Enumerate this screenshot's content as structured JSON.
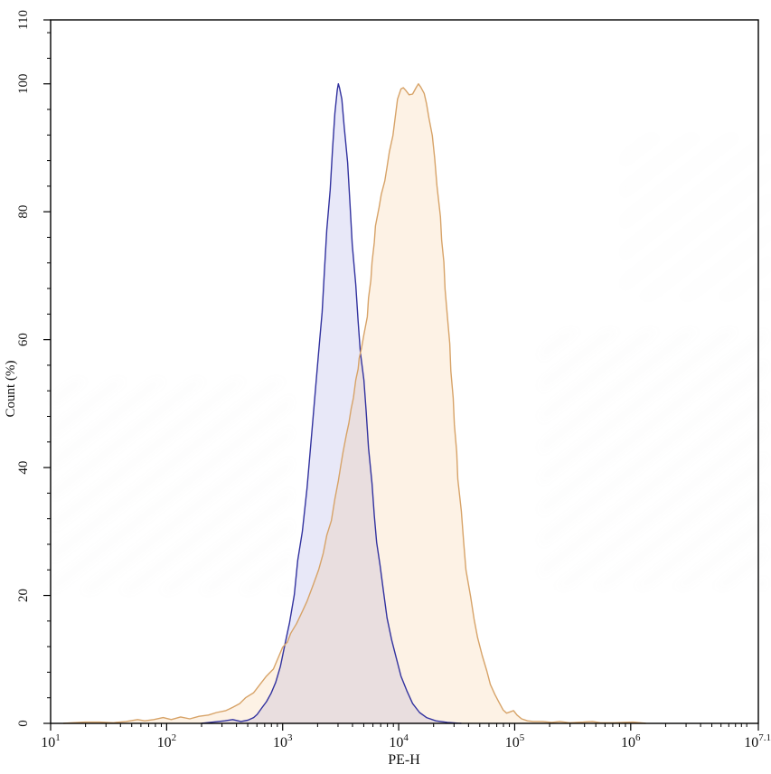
{
  "chart_data": {
    "type": "area",
    "title": "",
    "xlabel": "PE-H",
    "ylabel": "Count (%)",
    "x_scale": "log10",
    "x_log_range": [
      1,
      7.1
    ],
    "ylim": [
      0,
      110
    ],
    "grid": false,
    "legend": "none",
    "x_major_ticks": [
      {
        "log": 1,
        "base": "10",
        "exp": "1"
      },
      {
        "log": 2,
        "base": "10",
        "exp": "2"
      },
      {
        "log": 3,
        "base": "10",
        "exp": "3"
      },
      {
        "log": 4,
        "base": "10",
        "exp": "4"
      },
      {
        "log": 5,
        "base": "10",
        "exp": "5"
      },
      {
        "log": 6,
        "base": "10",
        "exp": "6"
      },
      {
        "log": 7.1,
        "base": "10",
        "exp": "7.1"
      }
    ],
    "y_major_ticks": [
      0,
      20,
      40,
      60,
      80,
      100,
      110
    ],
    "y_minor_interval": 4,
    "series": [
      {
        "name": "blue_histogram",
        "peak_log10_x": 3.48,
        "peak_pct": 100,
        "stroke": "#32329f",
        "fill": "rgba(95,95,205,0.14)",
        "points": [
          [
            2.3,
            0
          ],
          [
            2.4,
            0.2
          ],
          [
            2.5,
            0.4
          ],
          [
            2.57,
            0.6
          ],
          [
            2.64,
            0.3
          ],
          [
            2.7,
            0.5
          ],
          [
            2.75,
            0.9
          ],
          [
            2.78,
            1.4
          ],
          [
            2.82,
            2.4
          ],
          [
            2.86,
            3.4
          ],
          [
            2.9,
            4.7
          ],
          [
            2.94,
            6.4
          ],
          [
            2.98,
            8.9
          ],
          [
            3.02,
            12.4
          ],
          [
            3.06,
            15.8
          ],
          [
            3.1,
            20.1
          ],
          [
            3.13,
            25.5
          ],
          [
            3.17,
            30
          ],
          [
            3.21,
            36.8
          ],
          [
            3.25,
            45.2
          ],
          [
            3.29,
            53.7
          ],
          [
            3.31,
            58
          ],
          [
            3.34,
            64.3
          ],
          [
            3.36,
            70.7
          ],
          [
            3.38,
            77.1
          ],
          [
            3.41,
            83.4
          ],
          [
            3.43,
            89.8
          ],
          [
            3.45,
            95.4
          ],
          [
            3.47,
            99
          ],
          [
            3.48,
            100
          ],
          [
            3.49,
            99.4
          ],
          [
            3.51,
            97.6
          ],
          [
            3.53,
            93.3
          ],
          [
            3.56,
            87.7
          ],
          [
            3.58,
            81.3
          ],
          [
            3.6,
            74.9
          ],
          [
            3.63,
            68.6
          ],
          [
            3.65,
            62.9
          ],
          [
            3.67,
            58
          ],
          [
            3.7,
            53.7
          ],
          [
            3.72,
            48.8
          ],
          [
            3.74,
            43.1
          ],
          [
            3.77,
            37.5
          ],
          [
            3.79,
            32.5
          ],
          [
            3.81,
            28.3
          ],
          [
            3.84,
            24.7
          ],
          [
            3.87,
            20.5
          ],
          [
            3.9,
            16.5
          ],
          [
            3.94,
            13
          ],
          [
            3.98,
            10.2
          ],
          [
            4.02,
            7.4
          ],
          [
            4.07,
            5.1
          ],
          [
            4.12,
            3.1
          ],
          [
            4.18,
            1.7
          ],
          [
            4.24,
            0.9
          ],
          [
            4.32,
            0.4
          ],
          [
            4.42,
            0.15
          ],
          [
            4.54,
            0
          ]
        ]
      },
      {
        "name": "orange_histogram",
        "peak_log10_x": 4.17,
        "peak_pct": 100,
        "stroke": "#d7a368",
        "fill": "rgba(242,174,94,0.16)",
        "points": [
          [
            1.11,
            0
          ],
          [
            1.19,
            0.1
          ],
          [
            1.3,
            0.2
          ],
          [
            1.42,
            0.2
          ],
          [
            1.54,
            0.1
          ],
          [
            1.65,
            0.3
          ],
          [
            1.75,
            0.6
          ],
          [
            1.81,
            0.4
          ],
          [
            1.89,
            0.6
          ],
          [
            1.97,
            0.9
          ],
          [
            2.04,
            0.6
          ],
          [
            2.12,
            1.0
          ],
          [
            2.2,
            0.7
          ],
          [
            2.28,
            1.1
          ],
          [
            2.36,
            1.3
          ],
          [
            2.43,
            1.7
          ],
          [
            2.51,
            2.0
          ],
          [
            2.57,
            2.5
          ],
          [
            2.63,
            3.1
          ],
          [
            2.68,
            4.0
          ],
          [
            2.75,
            4.8
          ],
          [
            2.81,
            6.2
          ],
          [
            2.86,
            7.4
          ],
          [
            2.92,
            8.5
          ],
          [
            2.96,
            10.2
          ],
          [
            3.0,
            11.9
          ],
          [
            3.04,
            12.7
          ],
          [
            3.07,
            14.1
          ],
          [
            3.12,
            15.6
          ],
          [
            3.17,
            17.5
          ],
          [
            3.21,
            19.1
          ],
          [
            3.26,
            21.5
          ],
          [
            3.31,
            24
          ],
          [
            3.35,
            26.6
          ],
          [
            3.38,
            29.4
          ],
          [
            3.42,
            31.7
          ],
          [
            3.45,
            35.1
          ],
          [
            3.48,
            37.9
          ],
          [
            3.5,
            40.2
          ],
          [
            3.52,
            42.4
          ],
          [
            3.55,
            45.2
          ],
          [
            3.57,
            46.9
          ],
          [
            3.59,
            49.2
          ],
          [
            3.61,
            50.9
          ],
          [
            3.63,
            53.7
          ],
          [
            3.65,
            55.4
          ],
          [
            3.66,
            57.1
          ],
          [
            3.68,
            58.7
          ],
          [
            3.7,
            60.8
          ],
          [
            3.73,
            63.6
          ],
          [
            3.74,
            66.5
          ],
          [
            3.76,
            69.3
          ],
          [
            3.77,
            72.1
          ],
          [
            3.79,
            75.2
          ],
          [
            3.8,
            77.8
          ],
          [
            3.83,
            80.6
          ],
          [
            3.85,
            82.7
          ],
          [
            3.88,
            84.8
          ],
          [
            3.9,
            87
          ],
          [
            3.92,
            89.4
          ],
          [
            3.95,
            91.9
          ],
          [
            3.97,
            94.7
          ],
          [
            3.99,
            97.6
          ],
          [
            4.02,
            99.2
          ],
          [
            4.04,
            99.4
          ],
          [
            4.06,
            99
          ],
          [
            4.09,
            98.3
          ],
          [
            4.12,
            98.4
          ],
          [
            4.15,
            99.4
          ],
          [
            4.17,
            100
          ],
          [
            4.19,
            99.5
          ],
          [
            4.22,
            98.5
          ],
          [
            4.24,
            96.9
          ],
          [
            4.26,
            94.7
          ],
          [
            4.29,
            91.9
          ],
          [
            4.31,
            88.4
          ],
          [
            4.33,
            84.1
          ],
          [
            4.36,
            79.2
          ],
          [
            4.37,
            75.6
          ],
          [
            4.39,
            72.1
          ],
          [
            4.4,
            67.9
          ],
          [
            4.42,
            63.6
          ],
          [
            4.44,
            59.4
          ],
          [
            4.45,
            55.1
          ],
          [
            4.47,
            50.9
          ],
          [
            4.48,
            46.7
          ],
          [
            4.5,
            42.4
          ],
          [
            4.51,
            38.2
          ],
          [
            4.54,
            33.2
          ],
          [
            4.56,
            28.3
          ],
          [
            4.58,
            24
          ],
          [
            4.62,
            19.8
          ],
          [
            4.65,
            16.3
          ],
          [
            4.68,
            13.4
          ],
          [
            4.72,
            10.6
          ],
          [
            4.76,
            8.2
          ],
          [
            4.79,
            6.1
          ],
          [
            4.83,
            4.5
          ],
          [
            4.87,
            3.1
          ],
          [
            4.9,
            2.1
          ],
          [
            4.93,
            1.6
          ],
          [
            4.96,
            1.8
          ],
          [
            4.99,
            2.0
          ],
          [
            5.02,
            1.3
          ],
          [
            5.06,
            0.7
          ],
          [
            5.11,
            0.4
          ],
          [
            5.16,
            0.3
          ],
          [
            5.24,
            0.3
          ],
          [
            5.32,
            0.15
          ],
          [
            5.39,
            0.3
          ],
          [
            5.47,
            0.1
          ],
          [
            5.59,
            0.2
          ],
          [
            5.67,
            0.3
          ],
          [
            5.74,
            0.1
          ],
          [
            5.86,
            0.1
          ],
          [
            6.02,
            0.2
          ],
          [
            6.13,
            0
          ]
        ]
      }
    ]
  }
}
